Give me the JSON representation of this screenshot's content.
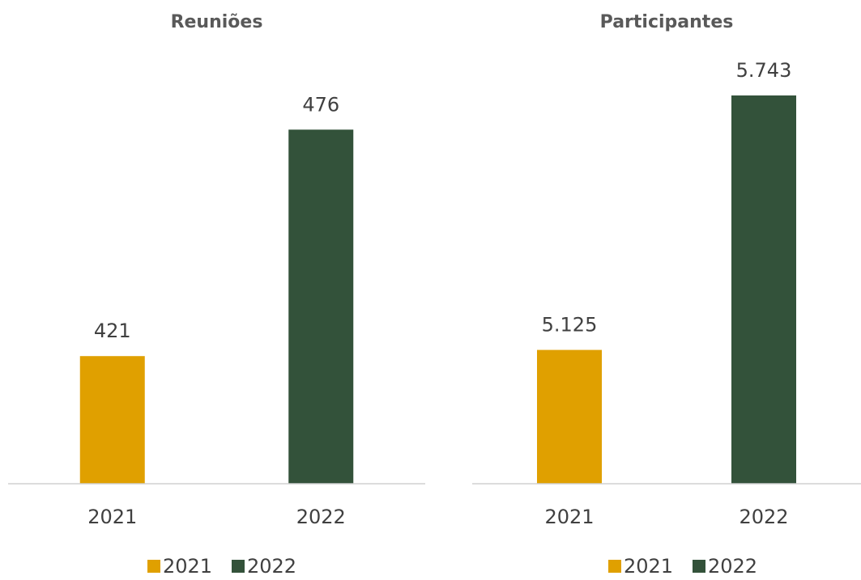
{
  "chart_data": [
    {
      "type": "bar",
      "title": "Reuniões",
      "categories": [
        "2021",
        "2022"
      ],
      "values": [
        421,
        476
      ],
      "colors": [
        "#e0a000",
        "#33523a"
      ],
      "ylim": [
        390,
        490
      ],
      "legend": "bottom"
    },
    {
      "type": "bar",
      "title": "Participantes",
      "categories": [
        "2021",
        "2022"
      ],
      "values": [
        5125,
        5743
      ],
      "value_labels": [
        "5.125",
        "5.743"
      ],
      "colors": [
        "#e0a000",
        "#33523a"
      ],
      "ylim": [
        4800,
        5800
      ],
      "legend": "bottom"
    }
  ]
}
